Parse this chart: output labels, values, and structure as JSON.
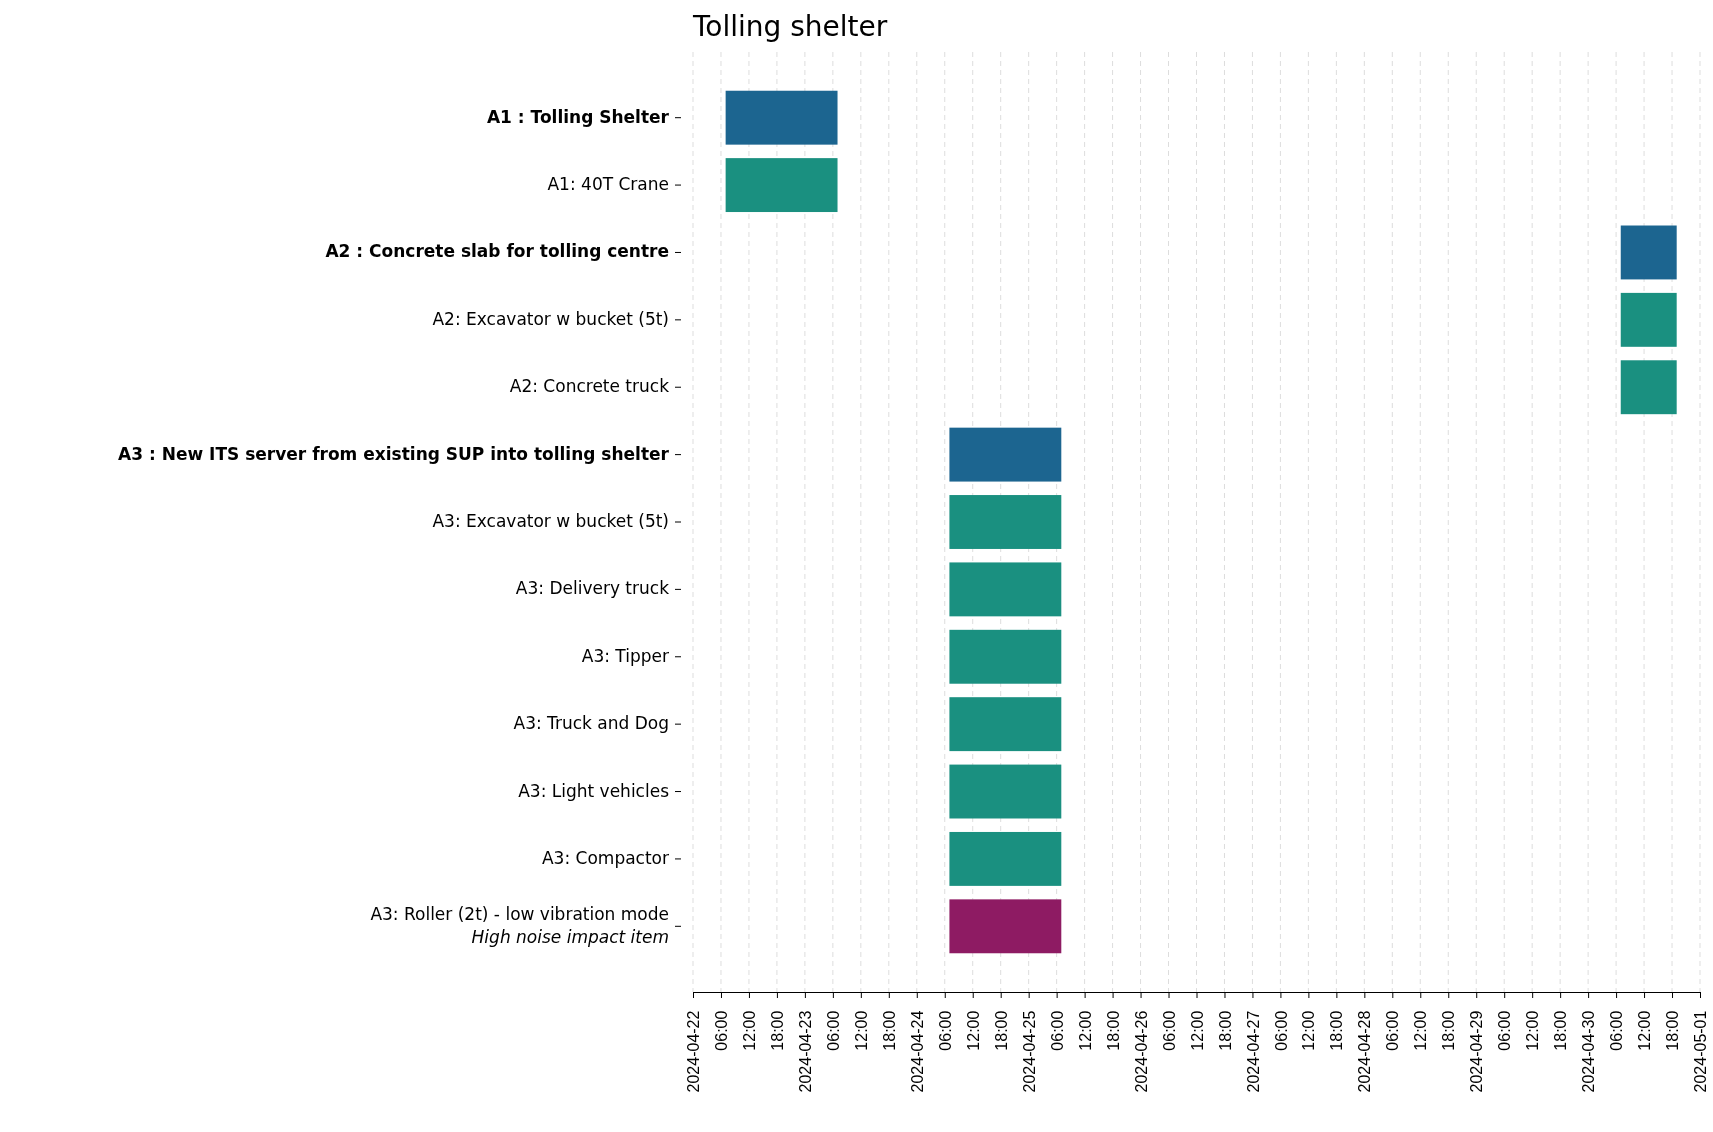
{
  "chart_data": {
    "type": "bar",
    "orientation": "horizontal",
    "title": "Tolling shelter",
    "categories": [
      "A1 : Tolling Shelter",
      "A1: 40T Crane",
      "A2 : Concrete slab for tolling centre",
      "A2: Excavator w bucket (5t)",
      "A2: Concrete truck",
      "A3 : New ITS server from existing SUP into tolling shelter",
      "A3: Excavator w bucket (5t)",
      "A3: Delivery truck",
      "A3: Tipper",
      "A3: Truck and Dog",
      "A3: Light vehicles",
      "A3: Compactor",
      "A3: Roller (2t) - low vibration mode\nHigh noise impact item"
    ],
    "base": [
      19835.291667,
      19835.291667,
      19843.291667,
      19843.291667,
      19843.291667,
      19837.291667,
      19837.291667,
      19837.291667,
      19837.291667,
      19837.291667,
      19837.291667,
      19837.291667,
      19837.291667
    ],
    "values": [
      1,
      1,
      0.5,
      0.5,
      0.5,
      1,
      1,
      1,
      1,
      1,
      1,
      1,
      1
    ],
    "colors": [
      "#1c6590",
      "#1a9080",
      "#1c6590",
      "#1a9080",
      "#1a9080",
      "#1c6590",
      "#1a9080",
      "#1a9080",
      "#1a9080",
      "#1a9080",
      "#1a9080",
      "#1a9080",
      "#8e1b63"
    ],
    "xlim": [
      "2024-04-22",
      "2024-05-01"
    ],
    "xticks": [
      {
        "value": "2024-04-22",
        "label": "2024-04-22"
      },
      {
        "value": "2024-04-22T06:00",
        "label": "06:00"
      },
      {
        "value": "2024-04-22T12:00",
        "label": "12:00"
      },
      {
        "value": "2024-04-22T18:00",
        "label": "18:00"
      },
      {
        "value": "2024-04-23",
        "label": "2024-04-23"
      },
      {
        "value": "2024-04-23T06:00",
        "label": "06:00"
      },
      {
        "value": "2024-04-23T12:00",
        "label": "12:00"
      },
      {
        "value": "2024-04-23T18:00",
        "label": "18:00"
      },
      {
        "value": "2024-04-24",
        "label": "2024-04-24"
      },
      {
        "value": "2024-04-24T06:00",
        "label": "06:00"
      },
      {
        "value": "2024-04-24T12:00",
        "label": "12:00"
      },
      {
        "value": "2024-04-24T18:00",
        "label": "18:00"
      },
      {
        "value": "2024-04-25",
        "label": "2024-04-25"
      },
      {
        "value": "2024-04-25T06:00",
        "label": "06:00"
      },
      {
        "value": "2024-04-25T12:00",
        "label": "12:00"
      },
      {
        "value": "2024-04-25T18:00",
        "label": "18:00"
      },
      {
        "value": "2024-04-26",
        "label": "2024-04-26"
      },
      {
        "value": "2024-04-26T06:00",
        "label": "06:00"
      },
      {
        "value": "2024-04-26T12:00",
        "label": "12:00"
      },
      {
        "value": "2024-04-26T18:00",
        "label": "18:00"
      },
      {
        "value": "2024-04-27",
        "label": "2024-04-27"
      },
      {
        "value": "2024-04-27T06:00",
        "label": "06:00"
      },
      {
        "value": "2024-04-27T12:00",
        "label": "12:00"
      },
      {
        "value": "2024-04-27T18:00",
        "label": "18:00"
      },
      {
        "value": "2024-04-28",
        "label": "2024-04-28"
      },
      {
        "value": "2024-04-28T06:00",
        "label": "06:00"
      },
      {
        "value": "2024-04-28T12:00",
        "label": "12:00"
      },
      {
        "value": "2024-04-28T18:00",
        "label": "18:00"
      },
      {
        "value": "2024-04-29",
        "label": "2024-04-29"
      },
      {
        "value": "2024-04-29T06:00",
        "label": "06:00"
      },
      {
        "value": "2024-04-29T12:00",
        "label": "12:00"
      },
      {
        "value": "2024-04-29T18:00",
        "label": "18:00"
      },
      {
        "value": "2024-04-30",
        "label": "2024-04-30"
      },
      {
        "value": "2024-04-30T06:00",
        "label": "06:00"
      },
      {
        "value": "2024-04-30T12:00",
        "label": "12:00"
      },
      {
        "value": "2024-04-30T18:00",
        "label": "18:00"
      },
      {
        "value": "2024-05-01",
        "label": "2024-05-01"
      }
    ],
    "grid": "x"
  }
}
